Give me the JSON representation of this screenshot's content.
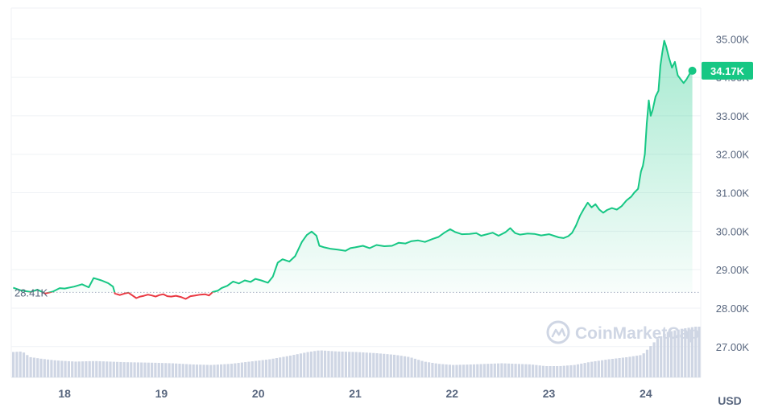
{
  "chart_data": {
    "type": "line",
    "x_ticks": [
      "18",
      "19",
      "20",
      "21",
      "22",
      "23",
      "24"
    ],
    "y_ticks": [
      "27.00K",
      "28.00K",
      "29.00K",
      "30.00K",
      "31.00K",
      "32.00K",
      "33.00K",
      "34.00K",
      "35.00K"
    ],
    "ylim": [
      26200,
      35800
    ],
    "xlim": [
      17.45,
      24.55
    ],
    "unit": "USD",
    "reference_value": 28410,
    "reference_label": "28.41K",
    "current_label": "34.17K",
    "current_value": 34170,
    "watermark": "CoinMarketCap",
    "colors": {
      "up": "#16c784",
      "down": "#ea3943",
      "badge": "#16c784",
      "volume": "#cfd6e4",
      "grid": "#eff2f5"
    },
    "grid": true,
    "price": [
      [
        17.47,
        28530
      ],
      [
        17.55,
        28460
      ],
      [
        17.65,
        28420
      ],
      [
        17.72,
        28480
      ],
      [
        17.8,
        28380
      ],
      [
        17.88,
        28430
      ],
      [
        17.95,
        28520
      ],
      [
        18.0,
        28510
      ],
      [
        18.1,
        28560
      ],
      [
        18.18,
        28620
      ],
      [
        18.25,
        28540
      ],
      [
        18.3,
        28780
      ],
      [
        18.38,
        28720
      ],
      [
        18.45,
        28650
      ],
      [
        18.5,
        28560
      ],
      [
        18.52,
        28380
      ],
      [
        18.57,
        28340
      ],
      [
        18.62,
        28380
      ],
      [
        18.66,
        28400
      ],
      [
        18.7,
        28330
      ],
      [
        18.74,
        28260
      ],
      [
        18.78,
        28300
      ],
      [
        18.82,
        28320
      ],
      [
        18.86,
        28350
      ],
      [
        18.9,
        28330
      ],
      [
        18.94,
        28300
      ],
      [
        18.98,
        28340
      ],
      [
        19.02,
        28360
      ],
      [
        19.06,
        28310
      ],
      [
        19.1,
        28300
      ],
      [
        19.15,
        28320
      ],
      [
        19.2,
        28290
      ],
      [
        19.25,
        28240
      ],
      [
        19.3,
        28310
      ],
      [
        19.35,
        28330
      ],
      [
        19.4,
        28350
      ],
      [
        19.45,
        28360
      ],
      [
        19.49,
        28330
      ],
      [
        19.53,
        28420
      ],
      [
        19.58,
        28450
      ],
      [
        19.62,
        28520
      ],
      [
        19.68,
        28580
      ],
      [
        19.74,
        28690
      ],
      [
        19.8,
        28640
      ],
      [
        19.86,
        28720
      ],
      [
        19.92,
        28680
      ],
      [
        19.97,
        28760
      ],
      [
        20.03,
        28720
      ],
      [
        20.1,
        28660
      ],
      [
        20.15,
        28820
      ],
      [
        20.2,
        29180
      ],
      [
        20.25,
        29270
      ],
      [
        20.32,
        29210
      ],
      [
        20.38,
        29350
      ],
      [
        20.45,
        29720
      ],
      [
        20.5,
        29900
      ],
      [
        20.55,
        29990
      ],
      [
        20.6,
        29880
      ],
      [
        20.63,
        29620
      ],
      [
        20.68,
        29580
      ],
      [
        20.75,
        29540
      ],
      [
        20.82,
        29520
      ],
      [
        20.9,
        29490
      ],
      [
        20.95,
        29560
      ],
      [
        21.0,
        29580
      ],
      [
        21.08,
        29620
      ],
      [
        21.15,
        29560
      ],
      [
        21.22,
        29640
      ],
      [
        21.3,
        29610
      ],
      [
        21.38,
        29620
      ],
      [
        21.45,
        29700
      ],
      [
        21.52,
        29680
      ],
      [
        21.58,
        29740
      ],
      [
        21.65,
        29760
      ],
      [
        21.72,
        29720
      ],
      [
        21.8,
        29800
      ],
      [
        21.86,
        29850
      ],
      [
        21.92,
        29960
      ],
      [
        21.98,
        30050
      ],
      [
        22.03,
        29980
      ],
      [
        22.1,
        29920
      ],
      [
        22.18,
        29930
      ],
      [
        22.25,
        29950
      ],
      [
        22.3,
        29880
      ],
      [
        22.36,
        29920
      ],
      [
        22.42,
        29960
      ],
      [
        22.48,
        29880
      ],
      [
        22.55,
        29970
      ],
      [
        22.6,
        30080
      ],
      [
        22.65,
        29950
      ],
      [
        22.7,
        29910
      ],
      [
        22.78,
        29940
      ],
      [
        22.85,
        29930
      ],
      [
        22.92,
        29890
      ],
      [
        23.0,
        29920
      ],
      [
        23.05,
        29880
      ],
      [
        23.1,
        29840
      ],
      [
        23.15,
        29820
      ],
      [
        23.2,
        29870
      ],
      [
        23.24,
        29960
      ],
      [
        23.28,
        30150
      ],
      [
        23.32,
        30400
      ],
      [
        23.36,
        30580
      ],
      [
        23.4,
        30740
      ],
      [
        23.44,
        30620
      ],
      [
        23.48,
        30700
      ],
      [
        23.52,
        30560
      ],
      [
        23.56,
        30480
      ],
      [
        23.6,
        30550
      ],
      [
        23.65,
        30600
      ],
      [
        23.7,
        30560
      ],
      [
        23.75,
        30650
      ],
      [
        23.8,
        30800
      ],
      [
        23.85,
        30900
      ],
      [
        23.88,
        31000
      ],
      [
        23.92,
        31100
      ],
      [
        23.95,
        31550
      ],
      [
        23.97,
        31700
      ],
      [
        23.99,
        32000
      ],
      [
        24.01,
        32800
      ],
      [
        24.03,
        33400
      ],
      [
        24.05,
        33000
      ],
      [
        24.07,
        33150
      ],
      [
        24.1,
        33500
      ],
      [
        24.13,
        33650
      ],
      [
        24.15,
        34300
      ],
      [
        24.17,
        34650
      ],
      [
        24.19,
        34950
      ],
      [
        24.21,
        34800
      ],
      [
        24.24,
        34500
      ],
      [
        24.27,
        34250
      ],
      [
        24.3,
        34400
      ],
      [
        24.33,
        34050
      ],
      [
        24.36,
        33950
      ],
      [
        24.39,
        33850
      ],
      [
        24.42,
        33950
      ],
      [
        24.45,
        34080
      ],
      [
        24.48,
        34170
      ]
    ],
    "volume": [
      [
        17.45,
        0.9
      ],
      [
        17.55,
        0.92
      ],
      [
        17.63,
        0.72
      ],
      [
        17.75,
        0.66
      ],
      [
        17.9,
        0.6
      ],
      [
        18.1,
        0.56
      ],
      [
        18.3,
        0.58
      ],
      [
        18.6,
        0.54
      ],
      [
        18.9,
        0.52
      ],
      [
        19.1,
        0.5
      ],
      [
        19.3,
        0.46
      ],
      [
        19.5,
        0.44
      ],
      [
        19.7,
        0.48
      ],
      [
        19.9,
        0.56
      ],
      [
        20.1,
        0.64
      ],
      [
        20.3,
        0.76
      ],
      [
        20.5,
        0.9
      ],
      [
        20.62,
        0.96
      ],
      [
        20.8,
        0.92
      ],
      [
        21.0,
        0.9
      ],
      [
        21.2,
        0.86
      ],
      [
        21.4,
        0.8
      ],
      [
        21.55,
        0.72
      ],
      [
        21.7,
        0.56
      ],
      [
        21.85,
        0.48
      ],
      [
        22.0,
        0.44
      ],
      [
        22.2,
        0.46
      ],
      [
        22.5,
        0.5
      ],
      [
        22.8,
        0.46
      ],
      [
        22.95,
        0.4
      ],
      [
        23.1,
        0.4
      ],
      [
        23.25,
        0.44
      ],
      [
        23.4,
        0.54
      ],
      [
        23.6,
        0.64
      ],
      [
        23.8,
        0.72
      ],
      [
        23.95,
        0.8
      ],
      [
        24.02,
        1.05
      ],
      [
        24.1,
        1.35
      ],
      [
        24.2,
        1.6
      ],
      [
        24.35,
        1.72
      ],
      [
        24.5,
        1.8
      ]
    ]
  }
}
